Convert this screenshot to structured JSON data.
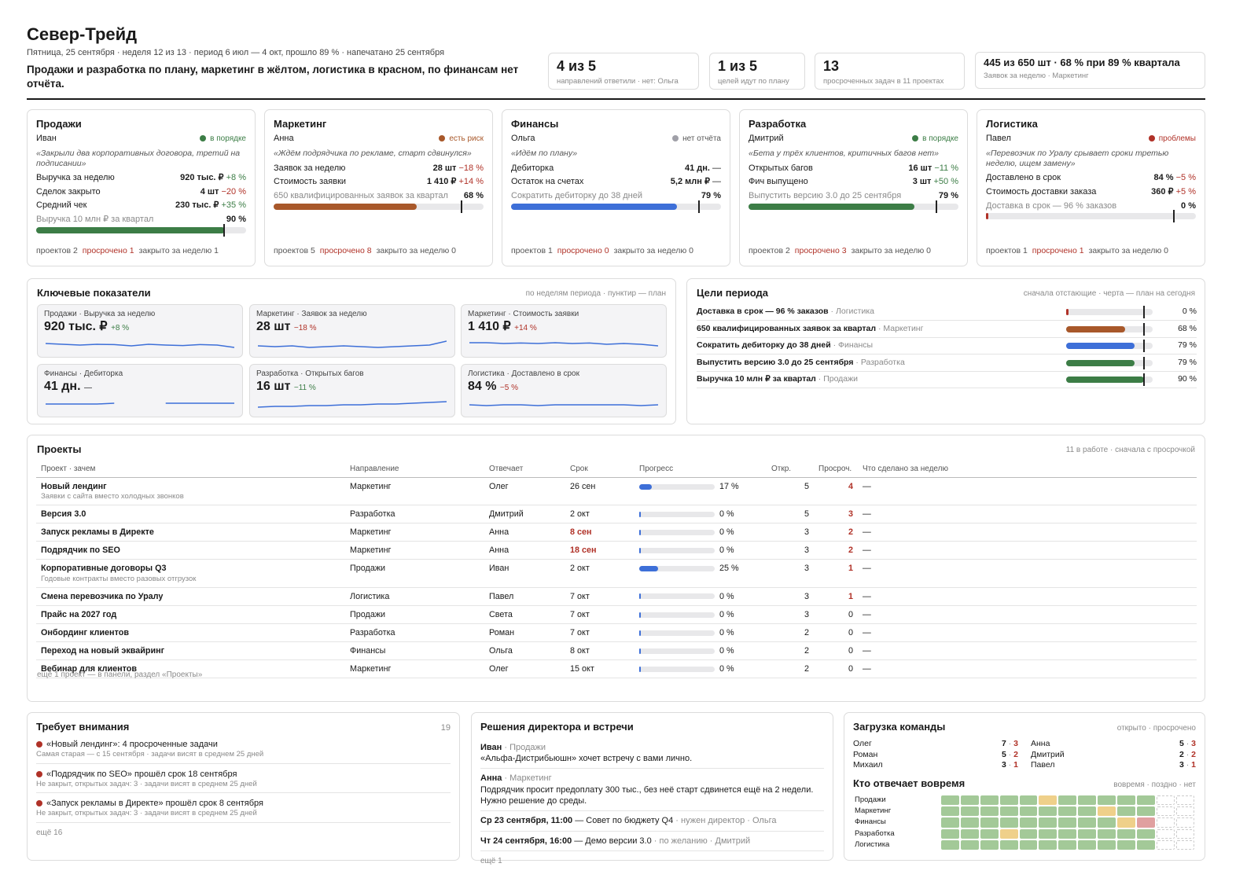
{
  "header": {
    "title": "Север-Трейд",
    "subtitle": "Пятница, 25 сентября · неделя 12 из 13 · период 6 июл — 4 окт, прошло 89 % · напечатано 25 сентября",
    "summary": "Продажи и разработка по плану, маркетинг в жёлтом, логистика в красном, по финансам нет отчёта."
  },
  "kpis": [
    {
      "value": "4 из 5",
      "caption": "направлений ответили · нет: Ольга"
    },
    {
      "value": "1 из 5",
      "caption": "целей идут по плану"
    },
    {
      "value": "13",
      "caption": "просроченных задач в 11 проектах"
    },
    {
      "value": "445 из 650 шт · 68 % при 89 % квартала",
      "caption": "Заявок за неделю · Маркетинг"
    }
  ],
  "directions": [
    {
      "name": "Продажи",
      "owner": "Иван",
      "status": "в порядке",
      "status_color": "#3c7d46",
      "quote": "«Закрыли два корпоративных договора, третий на подписании»",
      "metrics": [
        {
          "label": "Выручка за неделю",
          "value": "920 тыс. ₽",
          "delta": "+8 %",
          "dc": "grn"
        },
        {
          "label": "Сделок закрыто",
          "value": "4 шт",
          "delta": "−20 %",
          "dc": "red"
        },
        {
          "label": "Средний чек",
          "value": "230 тыс. ₽",
          "delta": "+35 %",
          "dc": "grn"
        }
      ],
      "goal": "Выручка 10 млн ₽ за квартал",
      "goal_pct": "90 %",
      "progress": 0.9,
      "color": "#3c7d46",
      "foot": {
        "p": "проектов 2",
        "o": "просрочено 1",
        "c": "закрыто за неделю 1"
      }
    },
    {
      "name": "Маркетинг",
      "owner": "Анна",
      "status": "есть риск",
      "status_color": "#a8582a",
      "quote": "«Ждём подрядчика по рекламе, старт сдвинулся»",
      "metrics": [
        {
          "label": "Заявок за неделю",
          "value": "28 шт",
          "delta": "−18 %",
          "dc": "red"
        },
        {
          "label": "Стоимость заявки",
          "value": "1 410 ₽",
          "delta": "+14 %",
          "dc": "red"
        }
      ],
      "goal": "650 квалифицированных заявок за квартал",
      "goal_pct": "68 %",
      "progress": 0.68,
      "color": "#a8582a",
      "foot": {
        "p": "проектов 5",
        "o": "просрочено 8",
        "c": "закрыто за неделю 0"
      }
    },
    {
      "name": "Финансы",
      "owner": "Ольга",
      "status": "нет отчёта",
      "status_color": "#a0a0a8",
      "quote": "«Идём по плану»",
      "metrics": [
        {
          "label": "Дебиторка",
          "value": "41 дн.",
          "delta": "—",
          "dc": ""
        },
        {
          "label": "Остаток на счетах",
          "value": "5,2 млн ₽",
          "delta": "—",
          "dc": ""
        }
      ],
      "goal": "Сократить дебиторку до 38 дней",
      "goal_pct": "79 %",
      "progress": 0.79,
      "color": "#3d6fd8",
      "foot": {
        "p": "проектов 1",
        "o": "просрочено 0",
        "c": "закрыто за неделю 0"
      }
    },
    {
      "name": "Разработка",
      "owner": "Дмитрий",
      "status": "в порядке",
      "status_color": "#3c7d46",
      "quote": "«Бета у трёх клиентов, критичных багов нет»",
      "metrics": [
        {
          "label": "Открытых багов",
          "value": "16 шт",
          "delta": "−11 %",
          "dc": "grn"
        },
        {
          "label": "Фич выпущено",
          "value": "3 шт",
          "delta": "+50 %",
          "dc": "grn"
        }
      ],
      "goal": "Выпустить версию 3.0 до 25 сентября",
      "goal_pct": "79 %",
      "progress": 0.79,
      "color": "#3c7d46",
      "foot": {
        "p": "проектов 2",
        "o": "просрочено 3",
        "c": "закрыто за неделю 0"
      }
    },
    {
      "name": "Логистика",
      "owner": "Павел",
      "status": "проблемы",
      "status_color": "#b03228",
      "quote": "«Перевозчик по Уралу срывает сроки третью неделю, ищем замену»",
      "metrics": [
        {
          "label": "Доставлено в срок",
          "value": "84 %",
          "delta": "−5 %",
          "dc": "red"
        },
        {
          "label": "Стоимость доставки заказа",
          "value": "360 ₽",
          "delta": "+5 %",
          "dc": "red"
        }
      ],
      "goal": "Доставка в срок — 96 % заказов",
      "goal_pct": "0 %",
      "progress": 0.0,
      "color": "#b03228",
      "foot": {
        "p": "проектов 1",
        "o": "просрочено 1",
        "c": "закрыто за неделю 0"
      }
    }
  ],
  "metrics": {
    "title": "Ключевые показатели",
    "note": "по неделям периода · пунктир — план",
    "tiles": [
      {
        "label": "Продажи · Выручка за неделю",
        "value": "920 тыс. ₽",
        "delta": "+8 %",
        "dc": "grn",
        "trend": [
          0.55,
          0.5,
          0.45,
          0.5,
          0.48,
          0.4,
          0.5,
          0.45,
          0.42,
          0.48,
          0.45,
          0.3
        ]
      },
      {
        "label": "Маркетинг · Заявок за неделю",
        "value": "28 шт",
        "delta": "−18 %",
        "dc": "red",
        "trend": [
          0.4,
          0.35,
          0.4,
          0.3,
          0.35,
          0.4,
          0.35,
          0.3,
          0.35,
          0.4,
          0.45,
          0.7
        ]
      },
      {
        "label": "Маркетинг · Стоимость заявки",
        "value": "1 410 ₽",
        "delta": "+14 %",
        "dc": "red",
        "trend": [
          0.6,
          0.6,
          0.55,
          0.58,
          0.55,
          0.6,
          0.55,
          0.58,
          0.5,
          0.55,
          0.5,
          0.4
        ]
      },
      {
        "label": "Финансы · Дебиторка",
        "value": "41 дн.",
        "delta": "—",
        "dc": "",
        "trend": [
          0.5,
          0.5,
          0.5,
          0.5,
          0.55,
          null,
          null,
          0.55,
          0.55,
          0.55,
          0.55,
          0.55
        ]
      },
      {
        "label": "Разработка · Открытых багов",
        "value": "16 шт",
        "delta": "−11 %",
        "dc": "grn",
        "trend": [
          0.3,
          0.35,
          0.35,
          0.4,
          0.4,
          0.45,
          0.45,
          0.5,
          0.5,
          0.55,
          0.6,
          0.65
        ]
      },
      {
        "label": "Логистика · Доставлено в срок",
        "value": "84 %",
        "delta": "−5 %",
        "dc": "red",
        "trend": [
          0.45,
          0.4,
          0.45,
          0.45,
          0.4,
          0.45,
          0.45,
          0.45,
          0.45,
          0.45,
          0.4,
          0.45
        ]
      }
    ]
  },
  "goals": {
    "title": "Цели периода",
    "note": "сначала отстающие · черта — план на сегодня",
    "items": [
      {
        "name": "Доставка в срок — 96 % заказов",
        "dir": "Логистика",
        "pct": "0 %",
        "progress": 0.0,
        "color": "#b03228"
      },
      {
        "name": "650 квалифицированных заявок за квартал",
        "dir": "Маркетинг",
        "pct": "68 %",
        "progress": 0.68,
        "color": "#a8582a"
      },
      {
        "name": "Сократить дебиторку до 38 дней",
        "dir": "Финансы",
        "pct": "79 %",
        "progress": 0.79,
        "color": "#3d6fd8"
      },
      {
        "name": "Выпустить версию 3.0 до 25 сентября",
        "dir": "Разработка",
        "pct": "79 %",
        "progress": 0.79,
        "color": "#3c7d46"
      },
      {
        "name": "Выручка 10 млн ₽ за квартал",
        "dir": "Продажи",
        "pct": "90 %",
        "progress": 0.9,
        "color": "#3c7d46"
      }
    ]
  },
  "projects": {
    "title": "Проекты",
    "note": "11 в работе · сначала с просрочкой",
    "columns": [
      "Проект · зачем",
      "Направление",
      "Отвечает",
      "Срок",
      "Прогресс",
      "Откр.",
      "Просроч.",
      "Что сделано за неделю"
    ],
    "rows": [
      {
        "name": "Новый лендинг",
        "why": "Заявки с сайта вместо холодных звонков",
        "dir": "Маркетинг",
        "owner": "Олег",
        "due": "26 сен",
        "due_red": false,
        "progress": 0.17,
        "pct": "17 %",
        "open": "5",
        "overdue": "4",
        "done": "—"
      },
      {
        "name": "Версия 3.0",
        "why": "",
        "dir": "Разработка",
        "owner": "Дмитрий",
        "due": "2 окт",
        "due_red": false,
        "progress": 0,
        "pct": "0 %",
        "open": "5",
        "overdue": "3",
        "done": "—"
      },
      {
        "name": "Запуск рекламы в Директе",
        "why": "",
        "dir": "Маркетинг",
        "owner": "Анна",
        "due": "8 сен",
        "due_red": true,
        "progress": 0,
        "pct": "0 %",
        "open": "3",
        "overdue": "2",
        "done": "—"
      },
      {
        "name": "Подрядчик по SEO",
        "why": "",
        "dir": "Маркетинг",
        "owner": "Анна",
        "due": "18 сен",
        "due_red": true,
        "progress": 0,
        "pct": "0 %",
        "open": "3",
        "overdue": "2",
        "done": "—"
      },
      {
        "name": "Корпоративные договоры Q3",
        "why": "Годовые контракты вместо разовых отгрузок",
        "dir": "Продажи",
        "owner": "Иван",
        "due": "2 окт",
        "due_red": false,
        "progress": 0.25,
        "pct": "25 %",
        "open": "3",
        "overdue": "1",
        "done": "—"
      },
      {
        "name": "Смена перевозчика по Уралу",
        "why": "",
        "dir": "Логистика",
        "owner": "Павел",
        "due": "7 окт",
        "due_red": false,
        "progress": 0,
        "pct": "0 %",
        "open": "3",
        "overdue": "1",
        "done": "—"
      },
      {
        "name": "Прайс на 2027 год",
        "why": "",
        "dir": "Продажи",
        "owner": "Света",
        "due": "7 окт",
        "due_red": false,
        "progress": 0,
        "pct": "0 %",
        "open": "3",
        "overdue": "0",
        "done": "—"
      },
      {
        "name": "Онбординг клиентов",
        "why": "",
        "dir": "Разработка",
        "owner": "Роман",
        "due": "7 окт",
        "due_red": false,
        "progress": 0,
        "pct": "0 %",
        "open": "2",
        "overdue": "0",
        "done": "—"
      },
      {
        "name": "Переход на новый эквайринг",
        "why": "",
        "dir": "Финансы",
        "owner": "Ольга",
        "due": "8 окт",
        "due_red": false,
        "progress": 0,
        "pct": "0 %",
        "open": "2",
        "overdue": "0",
        "done": "—"
      },
      {
        "name": "Вебинар для клиентов",
        "why": "",
        "dir": "Маркетинг",
        "owner": "Олег",
        "due": "15 окт",
        "due_red": false,
        "progress": 0,
        "pct": "0 %",
        "open": "2",
        "overdue": "0",
        "done": "—"
      }
    ],
    "more": "ещё 1 проект — в панели, раздел «Проекты»"
  },
  "attention": {
    "title": "Требует внимания",
    "count": "19",
    "items": [
      {
        "t": "«Новый лендинг»: 4 просроченные задачи",
        "s": "Самая старая — с 15 сентября · задачи висят в среднем 25 дней"
      },
      {
        "t": "«Подрядчик по SEO» прошёл срок 18 сентября",
        "s": "Не закрыт, открытых задач: 3 · задачи висят в среднем 25 дней"
      },
      {
        "t": "«Запуск рекламы в Директе» прошёл срок 8 сентября",
        "s": "Не закрыт, открытых задач: 3 · задачи висят в среднем 25 дней"
      }
    ],
    "more": "ещё 16"
  },
  "decisions": {
    "title": "Решения директора и встречи",
    "items": [
      {
        "who": "Иван",
        "dir": "Продажи",
        "text": "«Альфа-Дистрибьюшн» хочет встречу с вами лично."
      },
      {
        "who": "Анна",
        "dir": "Маркетинг",
        "text": "Подрядчик просит предоплату 300 тыс., без неё старт сдвинется ещё на 2 недели. Нужно решение до среды."
      }
    ],
    "meetings": [
      {
        "when": "Ср 23 сентября, 11:00",
        "what": "— Совет по бюджету Q4",
        "note": "· нужен директор · Ольга"
      },
      {
        "when": "Чт 24 сентября, 16:00",
        "what": "— Демо версии 3.0",
        "note": "· по желанию · Дмитрий"
      }
    ],
    "more": "ещё 1"
  },
  "load": {
    "title": "Загрузка команды",
    "note": "открыто · просрочено",
    "people": [
      {
        "name": "Олег",
        "open": "7",
        "over": "3"
      },
      {
        "name": "Анна",
        "open": "5",
        "over": "3"
      },
      {
        "name": "Роман",
        "open": "5",
        "over": "2"
      },
      {
        "name": "Дмитрий",
        "open": "2",
        "over": "2"
      },
      {
        "name": "Михаил",
        "open": "3",
        "over": "1"
      },
      {
        "name": "Павел",
        "open": "3",
        "over": "1"
      }
    ],
    "ontime_title": "Кто отвечает вовремя",
    "ontime_note": "вовремя · поздно · нет",
    "heat": [
      {
        "dir": "Продажи",
        "cells": [
          "g",
          "g",
          "g",
          "g",
          "g",
          "y",
          "g",
          "g",
          "g",
          "g",
          "g",
          "n",
          "n"
        ]
      },
      {
        "dir": "Маркетинг",
        "cells": [
          "g",
          "g",
          "g",
          "g",
          "g",
          "g",
          "g",
          "g",
          "y",
          "g",
          "g",
          "n",
          "n"
        ]
      },
      {
        "dir": "Финансы",
        "cells": [
          "g",
          "g",
          "g",
          "g",
          "g",
          "g",
          "g",
          "g",
          "g",
          "y",
          "r",
          "n",
          "n"
        ]
      },
      {
        "dir": "Разработка",
        "cells": [
          "g",
          "g",
          "g",
          "y",
          "g",
          "g",
          "g",
          "g",
          "g",
          "g",
          "g",
          "n",
          "n"
        ]
      },
      {
        "dir": "Логистика",
        "cells": [
          "g",
          "g",
          "g",
          "g",
          "g",
          "g",
          "g",
          "g",
          "g",
          "g",
          "g",
          "n",
          "n"
        ]
      }
    ]
  }
}
